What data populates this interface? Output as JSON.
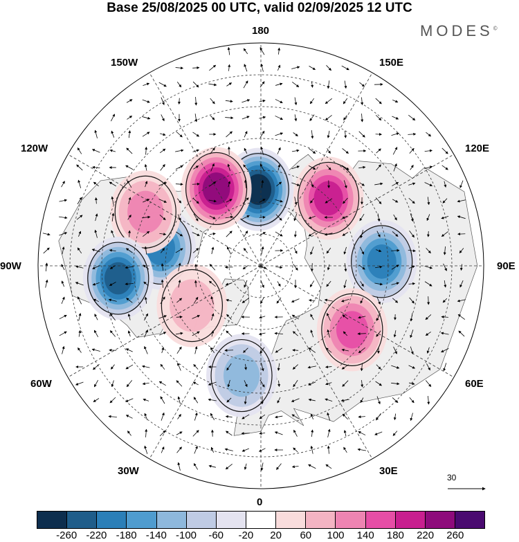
{
  "title": "Base 25/08/2025 00 UTC, valid 02/09/2025 12 UTC",
  "brand": "MODES",
  "brand_mark": "©",
  "longitude_labels": {
    "lon_180": "180",
    "lon_150e": "150E",
    "lon_120e": "120E",
    "lon_90e": "90E",
    "lon_60e": "60E",
    "lon_30e": "30E",
    "lon_0": "0",
    "lon_30w": "30W",
    "lon_60w": "60W",
    "lon_90w": "90W",
    "lon_120w": "120W",
    "lon_150w": "150W"
  },
  "vector_scale_label": "30",
  "colorbar": {
    "colors": [
      "#0d2e4e",
      "#1f5d8a",
      "#2b7fb8",
      "#4f9ccf",
      "#8eb8dc",
      "#bfcbe4",
      "#e4e3f0",
      "#ffffff",
      "#f9dcdc",
      "#f4b4c3",
      "#ee84b2",
      "#e64ea6",
      "#c81f8f",
      "#8e0b7b",
      "#4a0a70"
    ],
    "ticks": [
      "-260",
      "-220",
      "-180",
      "-140",
      "-100",
      "-60",
      "-20",
      "20",
      "60",
      "100",
      "140",
      "180",
      "220",
      "260"
    ]
  },
  "anomalies": [
    {
      "name": "anomaly-negative-north-pacific",
      "lat_approx": 66,
      "lon_approx": -178,
      "value": -260
    },
    {
      "name": "anomaly-positive-alaska",
      "lat_approx": 62,
      "lon_approx": -150,
      "value": 220
    },
    {
      "name": "anomaly-positive-east-siberia",
      "lat_approx": 60,
      "lon_approx": 135,
      "value": 180
    },
    {
      "name": "anomaly-negative-central-siberia",
      "lat_approx": 52,
      "lon_approx": 92,
      "value": -180
    },
    {
      "name": "anomaly-positive-west-siberia",
      "lat_approx": 55,
      "lon_approx": 55,
      "value": 140
    },
    {
      "name": "anomaly-negative-north-atlantic",
      "lat_approx": 55,
      "lon_approx": -10,
      "value": -100
    },
    {
      "name": "anomaly-negative-hudson-bay",
      "lat_approx": 58,
      "lon_approx": -100,
      "value": -180
    },
    {
      "name": "anomaly-positive-western-canada",
      "lat_approx": 50,
      "lon_approx": -115,
      "value": 100
    },
    {
      "name": "anomaly-negative-great-lakes",
      "lat_approx": 45,
      "lon_approx": -85,
      "value": -220
    },
    {
      "name": "anomaly-positive-greenland-west",
      "lat_approx": 65,
      "lon_approx": -60,
      "value": 60
    }
  ]
}
